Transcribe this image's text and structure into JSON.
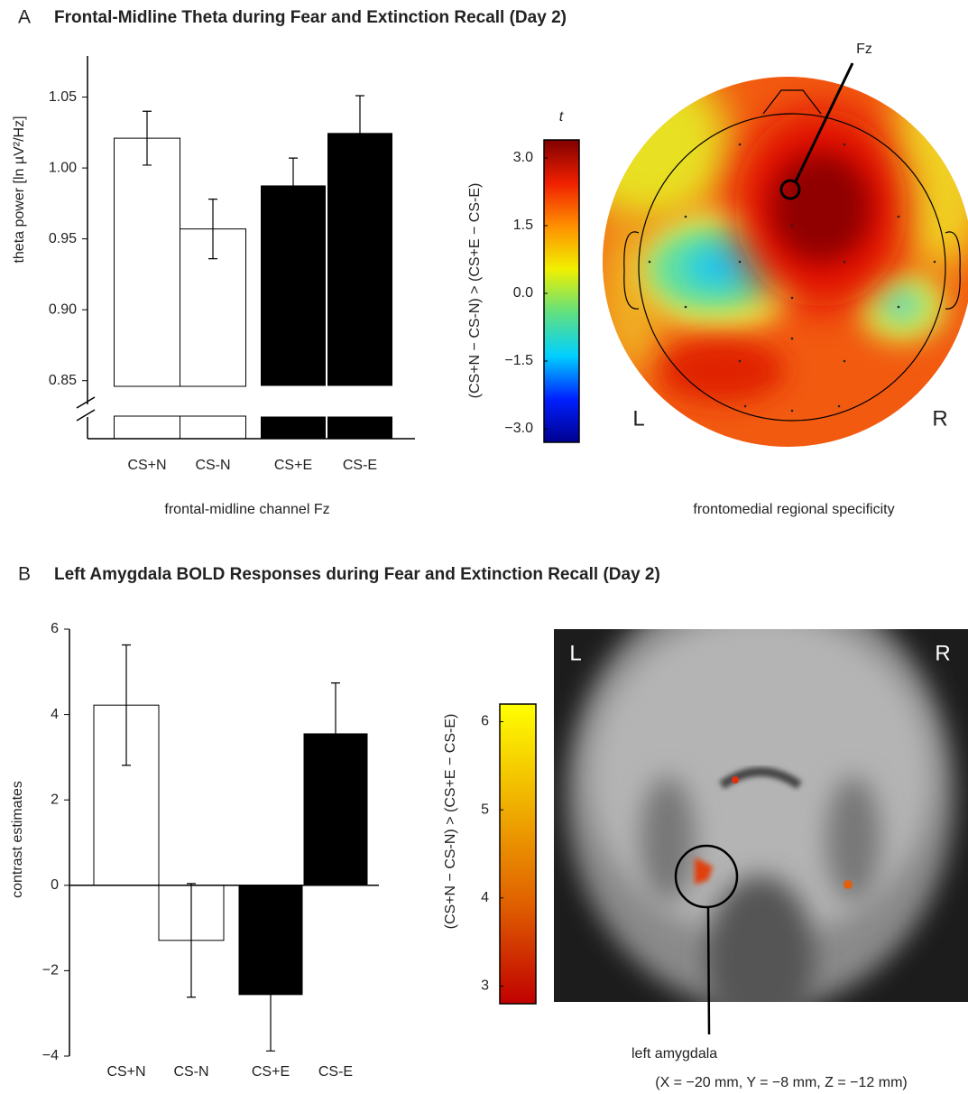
{
  "chart_data": [
    {
      "type": "bar",
      "panel": "A",
      "title": "Frontal-Midline Theta during Fear and Extinction Recall (Day 2)",
      "categories": [
        "CS+N",
        "CS-N",
        "CS+E",
        "CS-E"
      ],
      "values": [
        1.021,
        0.957,
        0.988,
        1.025
      ],
      "errors": [
        0.019,
        0.021,
        0.019,
        0.026
      ],
      "bar_colors": [
        "#ffffff",
        "#ffffff",
        "#000000",
        "#000000"
      ],
      "ylabel": "theta power [ln µV²/Hz]",
      "xlabel": "frontal-midline channel Fz",
      "ylim": [
        0.846,
        1.079
      ],
      "yticks": [
        0.85,
        {
          "value": 0.9,
          "label": "0.90"
        },
        0.95,
        {
          "value": 1.0,
          "label": "1.00"
        },
        1.05
      ]
    },
    {
      "type": "bar",
      "panel": "B",
      "title": "Left Amygdala BOLD Responses during Fear and Extinction Recall (Day 2)",
      "categories": [
        "CS+N",
        "CS-N",
        "CS+E",
        "CS-E"
      ],
      "values": [
        4.22,
        -1.29,
        -2.58,
        3.57
      ],
      "errors": [
        1.41,
        1.33,
        1.3,
        1.17
      ],
      "bar_colors": [
        "#ffffff",
        "#ffffff",
        "#000000",
        "#000000"
      ],
      "ylabel": "contrast estimates",
      "ylim": [
        -4,
        6
      ],
      "yticks": [
        {
          "value": -4,
          "label": "−4"
        },
        {
          "value": -2,
          "label": "−2"
        },
        0,
        2,
        4,
        6
      ]
    }
  ],
  "topomap": {
    "colorbar_title": "t",
    "colorbar_label": "(CS+N − CS-N) > (CS+E − CS-E)",
    "clim": [
      -3.3,
      3.4
    ],
    "cticks": [
      {
        "value": 3.0,
        "label": "3.0"
      },
      1.5,
      {
        "value": 0.0,
        "label": "0.0"
      },
      {
        "value": -1.5,
        "label": "−1.5"
      },
      {
        "value": -3.0,
        "label": "−3.0"
      }
    ],
    "colors": [
      "#00008f",
      "#0020ff",
      "#00d0ff",
      "#60e080",
      "#f0f000",
      "#ff9000",
      "#f02000",
      "#800000"
    ],
    "electrode": "Fz",
    "left": "L",
    "right": "R",
    "caption": "frontomedial regional specificity"
  },
  "brain_map": {
    "colorbar_label": "(CS+N − CS-N) > (CS+E − CS-E)",
    "clim": [
      2.8,
      6.2
    ],
    "cticks": [
      3,
      4,
      5,
      6
    ],
    "colors": [
      "#c00000",
      "#e06000",
      "#f0b000",
      "#ffff00"
    ],
    "left": "L",
    "right": "R",
    "region": "left amygdala",
    "coordinates": "(X = −20 mm, Y = −8 mm, Z = −12 mm)"
  }
}
